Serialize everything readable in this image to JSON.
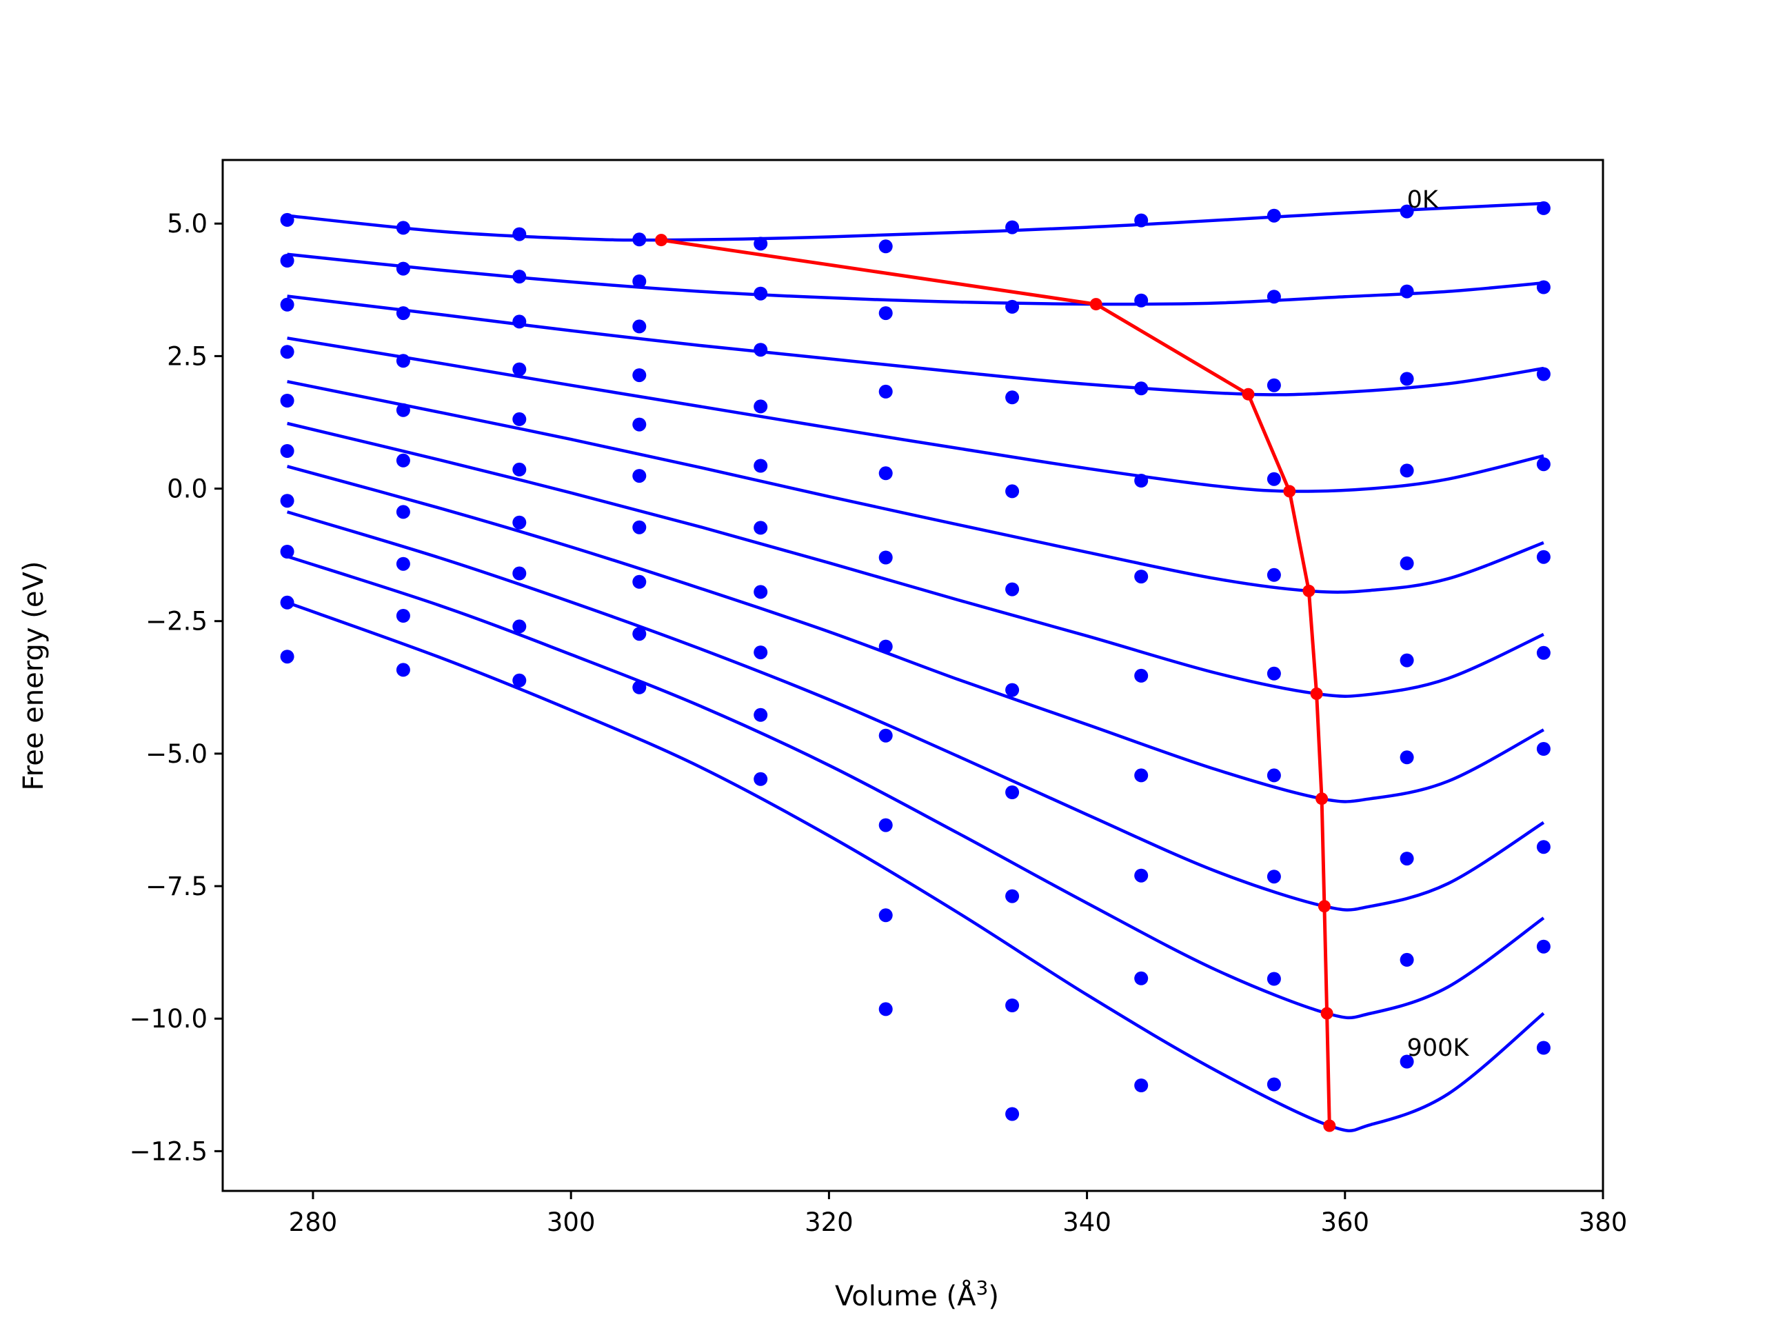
{
  "chart_data": {
    "type": "scatter",
    "title": "",
    "xlabel": "Volume (Å",
    "xlabel_sup": "3",
    "xlabel_close": ")",
    "ylabel": "Free energy (eV)",
    "xlim": [
      273,
      380
    ],
    "ylim": [
      -13.25,
      6.2
    ],
    "xticks": [
      280,
      300,
      320,
      340,
      360,
      380
    ],
    "xtick_labels": [
      "280",
      "300",
      "320",
      "340",
      "360",
      "380"
    ],
    "yticks": [
      5.0,
      2.5,
      0.0,
      -2.5,
      -5.0,
      -7.5,
      -10.0,
      -12.5
    ],
    "ytick_labels": [
      "5.0",
      "2.5",
      "0.0",
      "−2.5",
      "−5.0",
      "−7.5",
      "−10.0",
      "−12.5"
    ],
    "grid": false,
    "annotations": [
      {
        "text": "0K",
        "x": 364.8,
        "y": 5.3
      },
      {
        "text": "900K",
        "x": 364.8,
        "y": -10.7
      }
    ],
    "volumes": [
      278.0,
      287.0,
      296.0,
      305.3,
      314.7,
      324.4,
      334.2,
      344.2,
      354.5,
      364.8,
      375.4
    ],
    "series": [
      {
        "points": [
          5.07,
          4.92,
          4.8,
          4.7,
          4.62,
          4.57,
          4.93,
          5.06,
          5.15,
          5.23,
          5.29
        ],
        "curve": [
          [
            278,
            5.15
          ],
          [
            290,
            4.85
          ],
          [
            300,
            4.72
          ],
          [
            307,
            4.69
          ],
          [
            320,
            4.75
          ],
          [
            340,
            4.93
          ],
          [
            360,
            5.2
          ],
          [
            375.4,
            5.38
          ]
        ]
      },
      {
        "points": [
          4.3,
          4.15,
          4.0,
          3.91,
          3.68,
          3.31,
          3.43,
          3.55,
          3.62,
          3.72,
          3.8
        ],
        "curve": [
          [
            278,
            4.42
          ],
          [
            290,
            4.12
          ],
          [
            300,
            3.9
          ],
          [
            310,
            3.72
          ],
          [
            320,
            3.6
          ],
          [
            330,
            3.52
          ],
          [
            340.7,
            3.48
          ],
          [
            350,
            3.5
          ],
          [
            360,
            3.62
          ],
          [
            368,
            3.72
          ],
          [
            375.4,
            3.88
          ]
        ]
      },
      {
        "points": [
          3.47,
          3.31,
          3.15,
          3.06,
          2.62,
          1.83,
          1.72,
          1.89,
          1.95,
          2.07,
          2.16
        ],
        "curve": [
          [
            278,
            3.63
          ],
          [
            290,
            3.28
          ],
          [
            300,
            2.98
          ],
          [
            310,
            2.7
          ],
          [
            320,
            2.45
          ],
          [
            330,
            2.2
          ],
          [
            340,
            1.97
          ],
          [
            352.5,
            1.78
          ],
          [
            360,
            1.82
          ],
          [
            368,
            1.98
          ],
          [
            375.4,
            2.27
          ]
        ]
      },
      {
        "points": [
          2.58,
          2.41,
          2.25,
          2.14,
          1.55,
          0.29,
          -0.05,
          0.15,
          0.18,
          0.34,
          0.46
        ],
        "curve": [
          [
            278,
            2.84
          ],
          [
            290,
            2.36
          ],
          [
            300,
            1.95
          ],
          [
            310,
            1.55
          ],
          [
            320,
            1.15
          ],
          [
            330,
            0.76
          ],
          [
            340,
            0.38
          ],
          [
            350,
            0.05
          ],
          [
            355.7,
            -0.05
          ],
          [
            362,
            0.0
          ],
          [
            368,
            0.18
          ],
          [
            375.4,
            0.62
          ]
        ]
      },
      {
        "points": [
          1.66,
          1.48,
          1.31,
          1.21,
          0.43,
          -1.3,
          -1.9,
          -1.66,
          -1.63,
          -1.41,
          -1.29
        ],
        "curve": [
          [
            278,
            2.02
          ],
          [
            290,
            1.43
          ],
          [
            300,
            0.93
          ],
          [
            310,
            0.4
          ],
          [
            320,
            -0.15
          ],
          [
            330,
            -0.68
          ],
          [
            340,
            -1.2
          ],
          [
            350,
            -1.7
          ],
          [
            357.2,
            -1.93
          ],
          [
            362,
            -1.92
          ],
          [
            368,
            -1.7
          ],
          [
            375.4,
            -1.02
          ]
        ]
      },
      {
        "points": [
          0.71,
          0.53,
          0.36,
          0.24,
          -0.74,
          -2.98,
          -3.8,
          -3.53,
          -3.49,
          -3.24,
          -3.1
        ],
        "curve": [
          [
            278,
            1.23
          ],
          [
            290,
            0.53
          ],
          [
            300,
            -0.08
          ],
          [
            310,
            -0.72
          ],
          [
            320,
            -1.4
          ],
          [
            330,
            -2.1
          ],
          [
            340,
            -2.78
          ],
          [
            350,
            -3.48
          ],
          [
            357.8,
            -3.87
          ],
          [
            362,
            -3.88
          ],
          [
            368,
            -3.58
          ],
          [
            375.4,
            -2.75
          ]
        ]
      },
      {
        "points": [
          -0.23,
          -0.44,
          -0.64,
          -0.73,
          -1.95,
          -4.66,
          -5.73,
          -5.41,
          -5.41,
          -5.07,
          -4.91
        ],
        "curve": [
          [
            278,
            0.42
          ],
          [
            290,
            -0.38
          ],
          [
            300,
            -1.1
          ],
          [
            310,
            -1.88
          ],
          [
            320,
            -2.7
          ],
          [
            330,
            -3.6
          ],
          [
            340,
            -4.45
          ],
          [
            350,
            -5.3
          ],
          [
            358.2,
            -5.85
          ],
          [
            362,
            -5.85
          ],
          [
            368,
            -5.52
          ],
          [
            375.4,
            -4.55
          ]
        ]
      },
      {
        "points": [
          -1.19,
          -1.42,
          -1.6,
          -1.76,
          -3.09,
          -6.35,
          -7.69,
          -7.3,
          -7.32,
          -6.98,
          -6.76
        ],
        "curve": [
          [
            278,
            -0.44
          ],
          [
            290,
            -1.32
          ],
          [
            300,
            -2.14
          ],
          [
            310,
            -3.02
          ],
          [
            320,
            -3.98
          ],
          [
            330,
            -5.05
          ],
          [
            340,
            -6.15
          ],
          [
            350,
            -7.22
          ],
          [
            358.4,
            -7.88
          ],
          [
            362,
            -7.88
          ],
          [
            368,
            -7.45
          ],
          [
            375.4,
            -6.3
          ]
        ]
      },
      {
        "points": [
          -2.15,
          -2.4,
          -2.6,
          -2.74,
          -4.27,
          -8.05,
          -9.75,
          -9.24,
          -9.25,
          -8.89,
          -8.64
        ],
        "curve": [
          [
            278,
            -1.28
          ],
          [
            290,
            -2.22
          ],
          [
            300,
            -3.13
          ],
          [
            310,
            -4.1
          ],
          [
            320,
            -5.22
          ],
          [
            330,
            -6.5
          ],
          [
            340,
            -7.82
          ],
          [
            350,
            -9.08
          ],
          [
            358.6,
            -9.9
          ],
          [
            362,
            -9.9
          ],
          [
            368,
            -9.4
          ],
          [
            375.4,
            -8.1
          ]
        ]
      },
      {
        "points": [
          -3.17,
          -3.42,
          -3.62,
          -3.75,
          -5.48,
          -9.82,
          -11.8,
          -11.26,
          -11.24,
          -10.81,
          -10.55
        ],
        "curve": [
          [
            278,
            -2.15
          ],
          [
            290,
            -3.2
          ],
          [
            300,
            -4.18
          ],
          [
            310,
            -5.25
          ],
          [
            320,
            -6.55
          ],
          [
            330,
            -8.0
          ],
          [
            340,
            -9.55
          ],
          [
            350,
            -10.98
          ],
          [
            358.8,
            -12.02
          ],
          [
            362,
            -12.0
          ],
          [
            368,
            -11.42
          ],
          [
            375.4,
            -9.9
          ]
        ]
      }
    ],
    "minima_path": {
      "x": [
        307.0,
        340.7,
        352.5,
        355.7,
        357.2,
        357.8,
        358.2,
        358.4,
        358.6,
        358.8
      ],
      "y": [
        4.69,
        3.48,
        1.78,
        -0.05,
        -1.93,
        -3.87,
        -5.85,
        -7.88,
        -9.9,
        -12.02
      ]
    },
    "colors": {
      "series": "#0000ff",
      "minima_path": "#ff0000",
      "frame": "#000000"
    }
  }
}
